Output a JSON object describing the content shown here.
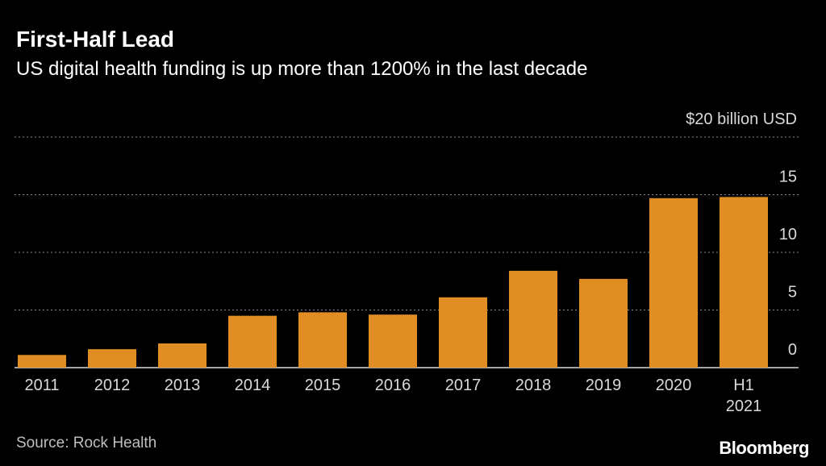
{
  "chart_data": {
    "type": "bar",
    "title": "First-Half Lead",
    "subtitle": "US digital health funding is up more than 1200% in the last decade",
    "categories": [
      "2011",
      "2012",
      "2013",
      "2014",
      "2015",
      "2016",
      "2017",
      "2018",
      "2019",
      "2020",
      "H1 2021"
    ],
    "values": [
      1.1,
      1.6,
      2.1,
      4.5,
      4.8,
      4.6,
      6.1,
      8.4,
      7.7,
      14.7,
      14.8
    ],
    "color": "#e08e24",
    "ylim": [
      0,
      20
    ],
    "yticks": [
      0,
      5,
      10,
      15,
      {
        "value": 20,
        "label": "$20 billion USD"
      }
    ],
    "grid": true,
    "source": "Source: Rock Health",
    "brand": "Bloomberg"
  }
}
